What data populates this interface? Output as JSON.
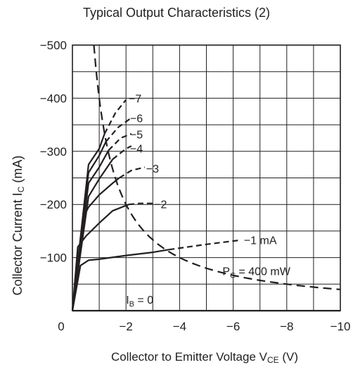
{
  "chart_data": {
    "type": "line",
    "title": "Typical Output Characteristics (2)",
    "xlabel": {
      "main": "Collector to Emitter Voltage  V",
      "sub": "CE",
      "tail": "  (V)"
    },
    "ylabel": {
      "main": "Collector Current  I",
      "sub": "C",
      "tail": "  (mA)"
    },
    "xlim": [
      0,
      -10
    ],
    "ylim": [
      0,
      -500
    ],
    "x_ticks": [
      0,
      -2,
      -4,
      -6,
      -8,
      -10
    ],
    "x_tick_labels": [
      "0",
      "−2",
      "−4",
      "−6",
      "−8",
      "−10"
    ],
    "y_ticks": [
      -100,
      -200,
      -300,
      -400,
      -500
    ],
    "y_tick_labels": [
      "−100",
      "−200",
      "−300",
      "−400",
      "−500"
    ],
    "grid": true,
    "series": [
      {
        "name": "0",
        "label": "I",
        "label_sub": "B",
        "label_tail": " = 0",
        "solid": [
          [
            0,
            0
          ],
          [
            -10,
            0
          ]
        ],
        "dashed": []
      },
      {
        "name": "-1 mA",
        "label": "−1 mA",
        "solid": [
          [
            0,
            0
          ],
          [
            -0.3,
            -85
          ],
          [
            -0.6,
            -95
          ],
          [
            -1,
            -97
          ],
          [
            -2,
            -104
          ],
          [
            -3,
            -110
          ],
          [
            -3.6,
            -115
          ]
        ],
        "dashed": [
          [
            -3.6,
            -115
          ],
          [
            -5,
            -125
          ],
          [
            -6.3,
            -133
          ]
        ]
      },
      {
        "name": "-2",
        "label": "−2",
        "solid": [
          [
            0,
            0
          ],
          [
            -0.2,
            -120
          ],
          [
            -0.5,
            -140
          ],
          [
            -1,
            -165
          ],
          [
            -1.5,
            -188
          ],
          [
            -2,
            -198
          ],
          [
            -2.1,
            -200
          ]
        ],
        "dashed": [
          [
            -2.1,
            -200
          ],
          [
            -2.5,
            -202
          ],
          [
            -3,
            -202
          ]
        ]
      },
      {
        "name": "-3",
        "label": "−3",
        "solid": [
          [
            0,
            0
          ],
          [
            -0.4,
            -175
          ],
          [
            -0.6,
            -195
          ],
          [
            -1,
            -218
          ],
          [
            -1.5,
            -240
          ],
          [
            -1.75,
            -250
          ]
        ],
        "dashed": [
          [
            -1.75,
            -250
          ],
          [
            -2.2,
            -264
          ],
          [
            -2.7,
            -270
          ]
        ]
      },
      {
        "name": "-4",
        "label": "−4",
        "solid": [
          [
            0,
            0
          ],
          [
            -0.6,
            -215
          ],
          [
            -1,
            -248
          ],
          [
            -1.5,
            -285
          ]
        ],
        "dashed": [
          [
            -1.5,
            -285
          ],
          [
            -2,
            -305
          ],
          [
            -2.2,
            -310
          ]
        ]
      },
      {
        "name": "-5",
        "label": "−5",
        "solid": [
          [
            0,
            0
          ],
          [
            -0.6,
            -240
          ],
          [
            -1,
            -270
          ],
          [
            -1.35,
            -302
          ]
        ],
        "dashed": [
          [
            -1.35,
            -302
          ],
          [
            -1.8,
            -325
          ],
          [
            -2.2,
            -333
          ]
        ]
      },
      {
        "name": "-6",
        "label": "−6",
        "solid": [
          [
            0,
            0
          ],
          [
            -0.6,
            -260
          ],
          [
            -1,
            -292
          ],
          [
            -1.25,
            -318
          ]
        ],
        "dashed": [
          [
            -1.25,
            -318
          ],
          [
            -1.7,
            -345
          ],
          [
            -2.2,
            -363
          ]
        ]
      },
      {
        "name": "-7",
        "label": "−7",
        "solid": [
          [
            0,
            0
          ],
          [
            -0.6,
            -275
          ],
          [
            -1,
            -305
          ],
          [
            -1.2,
            -333
          ]
        ],
        "dashed": [
          [
            -1.2,
            -333
          ],
          [
            -1.6,
            -372
          ],
          [
            -2,
            -397
          ]
        ]
      }
    ],
    "power_curve": {
      "name": "P_C = 400 mW",
      "label": "P",
      "label_sub": "C",
      "label_tail": " = 400 mW",
      "power_mW": 400,
      "x_range": [
        -0.8,
        -10
      ]
    }
  }
}
